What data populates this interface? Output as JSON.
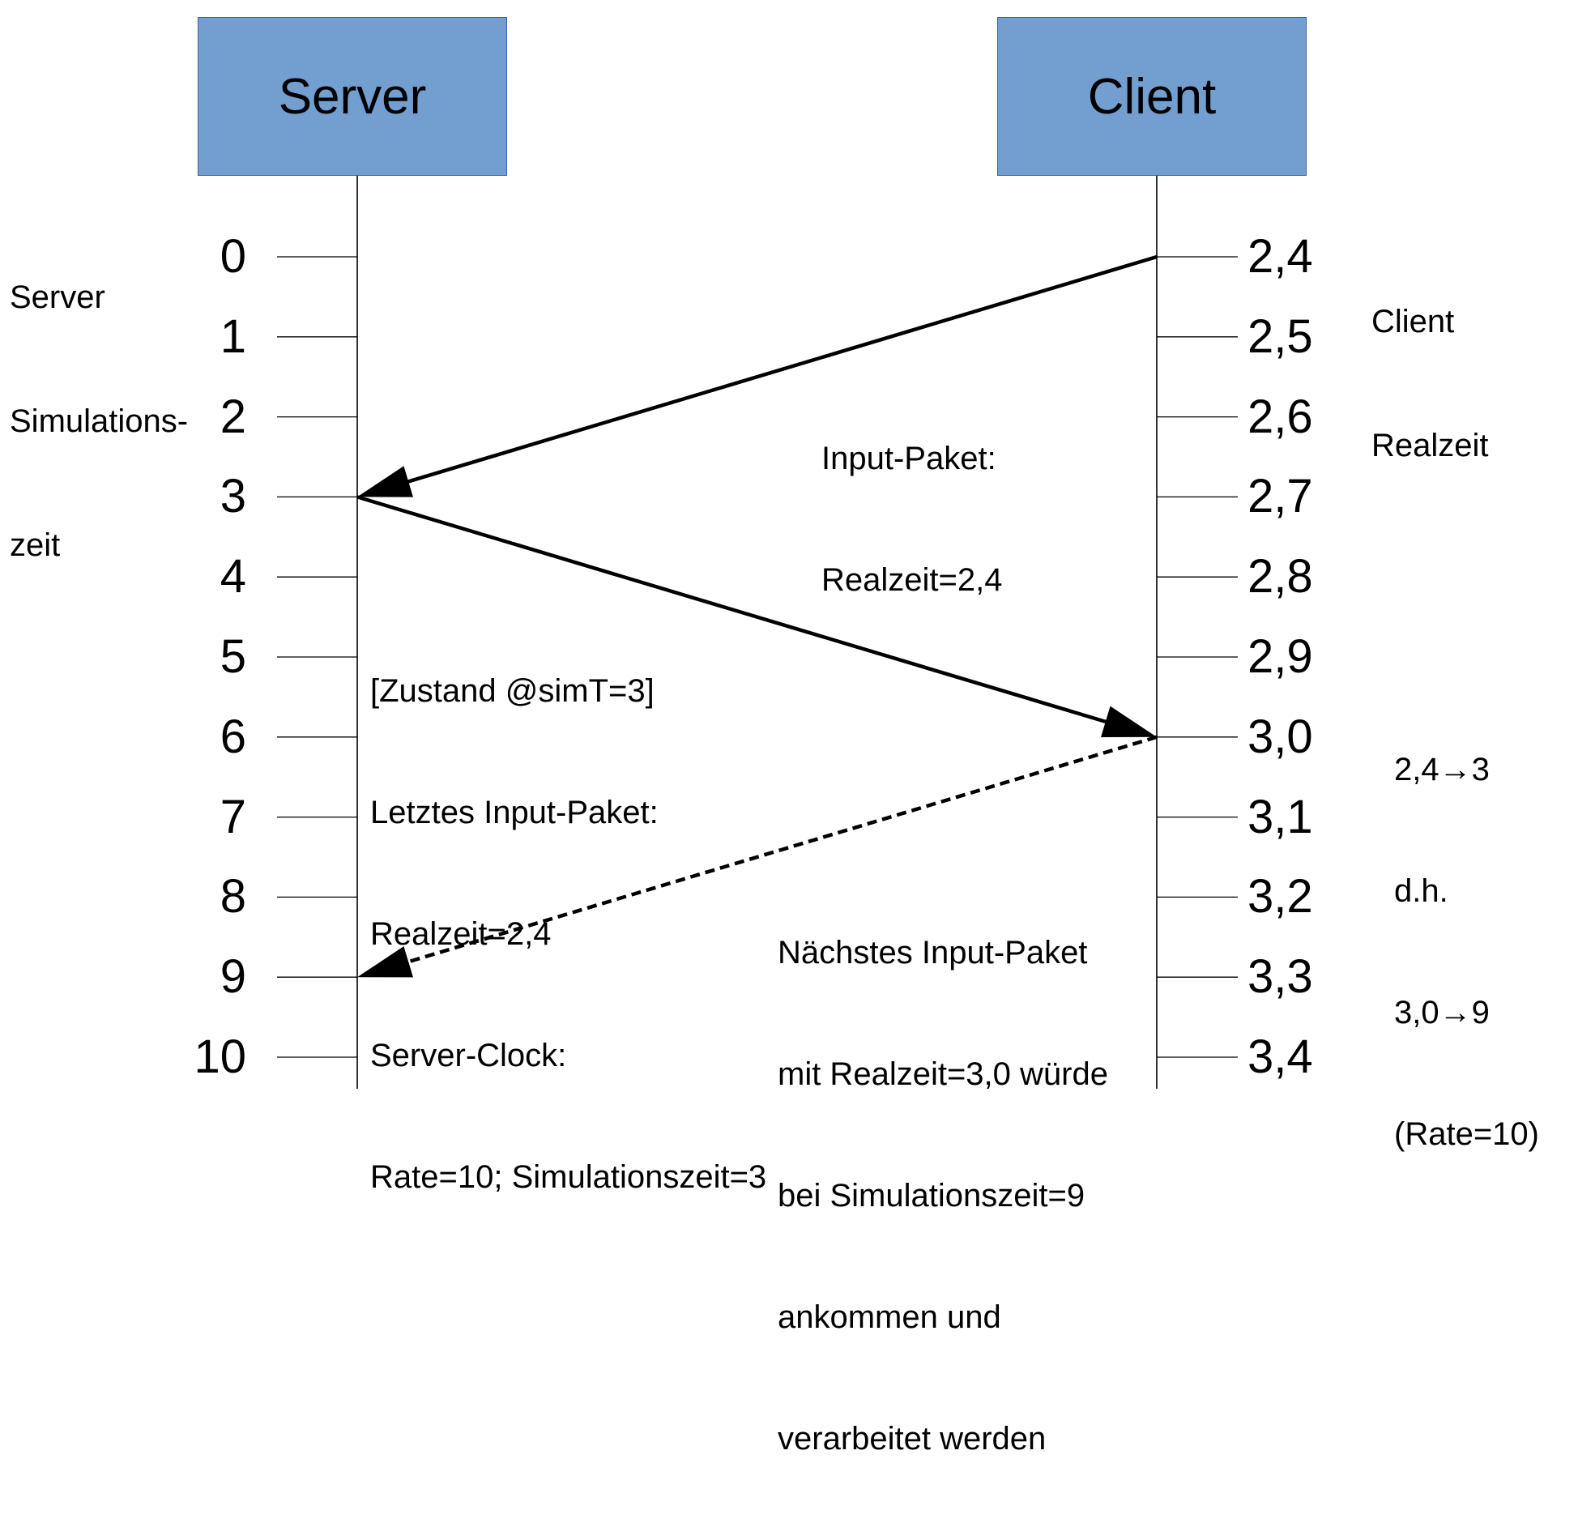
{
  "server": {
    "title": "Server"
  },
  "client": {
    "title": "Client"
  },
  "server_axis_label": [
    "Server",
    "Simulations-",
    "zeit"
  ],
  "client_axis_label": [
    "Client",
    "Realzeit"
  ],
  "server_ticks": [
    "0",
    "1",
    "2",
    "3",
    "4",
    "5",
    "6",
    "7",
    "8",
    "9",
    "10"
  ],
  "client_ticks": [
    "2,4",
    "2,5",
    "2,6",
    "2,7",
    "2,8",
    "2,9",
    "3,0",
    "3,1",
    "3,2",
    "3,3",
    "3,4"
  ],
  "messages": [
    {
      "from": "client",
      "from_tick": 0,
      "to": "server",
      "to_tick": 3,
      "style": "solid"
    },
    {
      "from": "server",
      "from_tick": 3,
      "to": "client",
      "to_tick": 6,
      "style": "solid"
    },
    {
      "from": "client",
      "from_tick": 6,
      "to": "server",
      "to_tick": 9,
      "style": "dashed"
    }
  ],
  "notes": {
    "input_packet": [
      "Input-Paket:",
      "Realzeit=2,4"
    ],
    "state": [
      "[Zustand @simT=3]",
      "Letztes Input-Paket:",
      "Realzeit=2,4",
      "Server-Clock:",
      "Rate=10; Simulationszeit=3"
    ],
    "next_packet": [
      "Nächstes Input-Paket",
      "mit Realzeit=3,0 würde",
      "bei Simulationszeit=9",
      "ankommen und",
      "verarbeitet werden"
    ],
    "mapping": [
      "2,4→3",
      "d.h.",
      "3,0→9",
      "(Rate=10)"
    ]
  },
  "colors": {
    "actor_fill": "#729fcf",
    "actor_border": "#3465a4",
    "line": "#000000"
  }
}
